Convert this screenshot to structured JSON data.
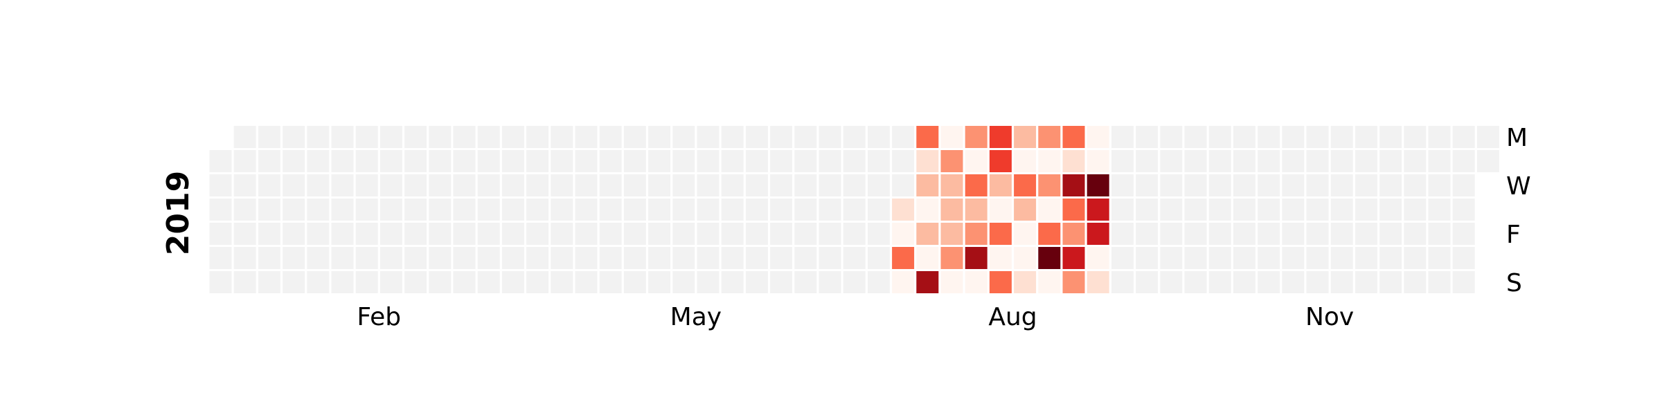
{
  "chart_data": {
    "type": "heatmap",
    "year": "2019",
    "year_label": "2019",
    "x_tick_labels": [
      {
        "label": "Feb",
        "week": 6.5
      },
      {
        "label": "May",
        "week": 19.5
      },
      {
        "label": "Aug",
        "week": 32.5
      },
      {
        "label": "Nov",
        "week": 45.5
      }
    ],
    "y_tick_labels": [
      {
        "label": "M",
        "day": 0
      },
      {
        "label": "W",
        "day": 2
      },
      {
        "label": "F",
        "day": 4
      },
      {
        "label": "S",
        "day": 6
      }
    ],
    "row_order": [
      "Mon",
      "Tue",
      "Wed",
      "Thu",
      "Fri",
      "Sat",
      "Sun"
    ],
    "first_week_start_day": 1,
    "last_week_end_day": 1,
    "total_weeks": 53,
    "value_range": [
      0,
      1
    ],
    "empty_color": "#f2f2f2",
    "colormap": [
      "#fff5f0",
      "#fee0d2",
      "#fcbba1",
      "#fc9272",
      "#fb6a4a",
      "#ef3b2c",
      "#cb181d",
      "#a50f15",
      "#67000d"
    ],
    "columns": [
      {
        "week": 28,
        "values": [
          null,
          null,
          null,
          0.12,
          0.04,
          0.45,
          0.04
        ]
      },
      {
        "week": 29,
        "values": [
          0.55,
          0.12,
          0.3,
          0.04,
          0.25,
          0.03,
          0.85
        ]
      },
      {
        "week": 30,
        "values": [
          0.04,
          0.38,
          0.2,
          0.28,
          0.3,
          0.38,
          0.03
        ]
      },
      {
        "week": 31,
        "values": [
          0.38,
          0.04,
          0.45,
          0.25,
          0.38,
          0.82,
          0.06
        ]
      },
      {
        "week": 32,
        "values": [
          0.6,
          0.6,
          0.28,
          0.04,
          0.55,
          0.03,
          0.48
        ]
      },
      {
        "week": 33,
        "values": [
          0.25,
          0.05,
          0.45,
          0.22,
          0.04,
          0.05,
          0.08
        ]
      },
      {
        "week": 34,
        "values": [
          0.32,
          0.06,
          0.42,
          0.06,
          0.5,
          0.98,
          0.06
        ]
      },
      {
        "week": 35,
        "values": [
          0.5,
          0.12,
          0.88,
          0.55,
          0.38,
          0.8,
          0.42
        ]
      },
      {
        "week": 36,
        "values": [
          0.06,
          0.06,
          1.0,
          0.75,
          0.8,
          0.04,
          0.12
        ]
      }
    ]
  }
}
